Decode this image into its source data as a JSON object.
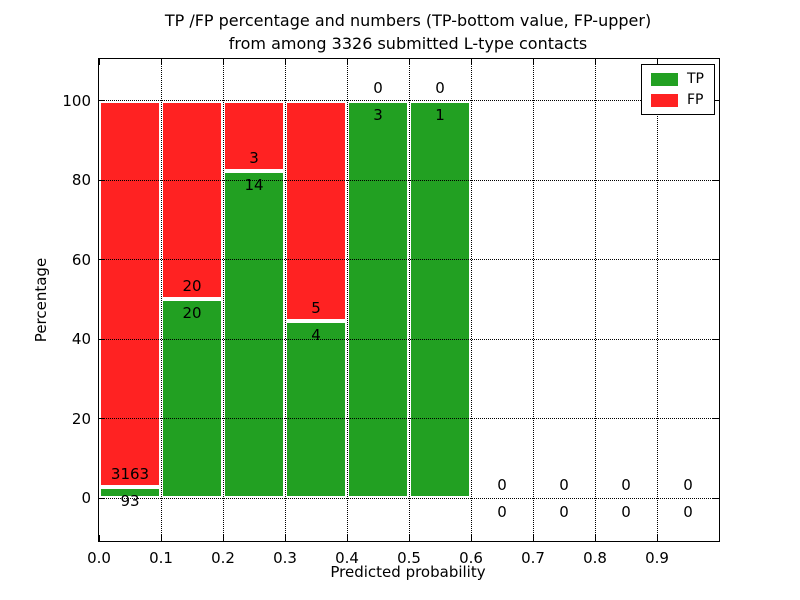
{
  "figure": {
    "title_line1": "TP /FP percentage and numbers (TP-bottom value, FP-upper)",
    "title_line2": "from among 3326 submitted L-type contacts"
  },
  "chart_data": {
    "type": "bar",
    "stacked": true,
    "normalized_to_percent": true,
    "title": "TP /FP percentage and numbers (TP-bottom value, FP-upper) from among 3326 submitted L-type contacts",
    "xlabel": "Predicted probability",
    "ylabel": "Percentage",
    "xlim": [
      0.0,
      1.0
    ],
    "ylim": [
      -11,
      110
    ],
    "grid": true,
    "grid_style": "dotted",
    "legend_position": "upper right",
    "total_contacts": 3326,
    "series": [
      {
        "name": "TP",
        "color": "#22a022",
        "stack_position": "bottom"
      },
      {
        "name": "FP",
        "color": "#ff2222",
        "stack_position": "top"
      }
    ],
    "bar_edge_color": "#ffffff",
    "xticks": [
      {
        "label": "0.0",
        "value": 0.0
      },
      {
        "label": "0.1",
        "value": 0.1
      },
      {
        "label": "0.2",
        "value": 0.2
      },
      {
        "label": "0.3",
        "value": 0.3
      },
      {
        "label": "0.4",
        "value": 0.4
      },
      {
        "label": "0.5",
        "value": 0.5
      },
      {
        "label": "0.6",
        "value": 0.6
      },
      {
        "label": "0.7",
        "value": 0.7
      },
      {
        "label": "0.8",
        "value": 0.8
      },
      {
        "label": "0.9",
        "value": 0.9
      }
    ],
    "yticks": [
      {
        "label": "0",
        "value": 0
      },
      {
        "label": "20",
        "value": 20
      },
      {
        "label": "40",
        "value": 40
      },
      {
        "label": "60",
        "value": 60
      },
      {
        "label": "80",
        "value": 80
      },
      {
        "label": "100",
        "value": 100
      }
    ],
    "bins": [
      {
        "x_start": 0.0,
        "x_end": 0.1,
        "tp": 93,
        "fp": 3163
      },
      {
        "x_start": 0.1,
        "x_end": 0.2,
        "tp": 20,
        "fp": 20
      },
      {
        "x_start": 0.2,
        "x_end": 0.3,
        "tp": 14,
        "fp": 3
      },
      {
        "x_start": 0.3,
        "x_end": 0.4,
        "tp": 4,
        "fp": 5
      },
      {
        "x_start": 0.4,
        "x_end": 0.5,
        "tp": 3,
        "fp": 0
      },
      {
        "x_start": 0.5,
        "x_end": 0.6,
        "tp": 1,
        "fp": 0
      },
      {
        "x_start": 0.6,
        "x_end": 0.7,
        "tp": 0,
        "fp": 0
      },
      {
        "x_start": 0.7,
        "x_end": 0.8,
        "tp": 0,
        "fp": 0
      },
      {
        "x_start": 0.8,
        "x_end": 0.9,
        "tp": 0,
        "fp": 0
      },
      {
        "x_start": 0.9,
        "x_end": 1.0,
        "tp": 0,
        "fp": 0
      }
    ]
  }
}
